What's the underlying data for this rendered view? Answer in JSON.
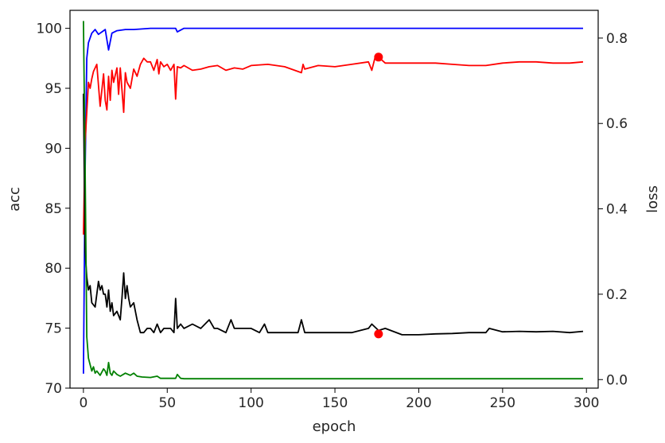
{
  "chart_data": {
    "type": "line",
    "title": "",
    "xlabel": "epoch",
    "ylabel_left": "acc",
    "ylabel_right": "loss",
    "xlim": [
      -8,
      307
    ],
    "ylim_left": [
      70,
      101.5
    ],
    "ylim_right": [
      -0.02,
      0.865
    ],
    "xticks": [
      0,
      50,
      100,
      150,
      200,
      250,
      300
    ],
    "yticks_left": [
      70,
      75,
      80,
      85,
      90,
      95,
      100
    ],
    "yticks_right": [
      0.0,
      0.2,
      0.4,
      0.6,
      0.8
    ],
    "grid": false,
    "legend": "none",
    "series": [
      {
        "axis": "left",
        "color": "#0000ff",
        "x": [
          0,
          1,
          2,
          3,
          5,
          7,
          9,
          11,
          13,
          15,
          17,
          20,
          25,
          30,
          40,
          55,
          56,
          60,
          70,
          100,
          150,
          200,
          250,
          298
        ],
        "values": [
          71.2,
          88.0,
          97.5,
          98.8,
          99.6,
          99.9,
          99.5,
          99.7,
          99.9,
          98.2,
          99.6,
          99.8,
          99.9,
          99.9,
          100.0,
          100.0,
          99.7,
          100.0,
          100.0,
          100.0,
          100.0,
          100.0,
          100.0,
          100.0
        ]
      },
      {
        "axis": "left",
        "color": "#ff0000",
        "x": [
          0,
          1,
          2,
          3,
          4,
          5,
          6,
          8,
          10,
          12,
          13,
          14,
          15,
          16,
          17,
          18,
          20,
          21,
          22,
          24,
          25,
          26,
          28,
          30,
          32,
          34,
          36,
          38,
          40,
          42,
          44,
          45,
          46,
          48,
          50,
          52,
          54,
          55,
          56,
          58,
          60,
          65,
          70,
          75,
          80,
          85,
          90,
          95,
          100,
          110,
          120,
          130,
          131,
          132,
          140,
          150,
          160,
          170,
          172,
          174,
          176,
          180,
          190,
          200,
          210,
          220,
          230,
          240,
          250,
          260,
          270,
          280,
          290,
          298
        ],
        "values": [
          82.8,
          90.5,
          93.0,
          95.5,
          95.0,
          95.8,
          96.4,
          97.0,
          93.5,
          96.2,
          94.0,
          93.2,
          96.0,
          94.0,
          96.5,
          95.5,
          96.7,
          94.5,
          96.7,
          93.0,
          96.3,
          95.5,
          95.0,
          96.6,
          96.0,
          97.0,
          97.5,
          97.2,
          97.2,
          96.5,
          97.4,
          96.2,
          97.2,
          96.8,
          97.0,
          96.5,
          97.0,
          94.1,
          96.8,
          96.7,
          96.9,
          96.5,
          96.6,
          96.8,
          96.9,
          96.5,
          96.7,
          96.6,
          96.9,
          97.0,
          96.8,
          96.3,
          97.0,
          96.6,
          96.9,
          96.8,
          97.0,
          97.2,
          96.5,
          97.6,
          97.6,
          97.1,
          97.1,
          97.1,
          97.1,
          97.0,
          96.9,
          96.9,
          97.1,
          97.2,
          97.2,
          97.1,
          97.1,
          97.2
        ]
      },
      {
        "axis": "right",
        "color": "#000000",
        "x": [
          0,
          1,
          2,
          3,
          4,
          5,
          7,
          9,
          10,
          11,
          12,
          13,
          14,
          15,
          16,
          17,
          18,
          20,
          22,
          23,
          24,
          25,
          26,
          27,
          28,
          30,
          32,
          34,
          36,
          38,
          40,
          42,
          44,
          46,
          48,
          50,
          52,
          54,
          55,
          56,
          58,
          60,
          65,
          70,
          75,
          78,
          80,
          85,
          88,
          90,
          100,
          105,
          108,
          110,
          120,
          128,
          130,
          132,
          140,
          150,
          160,
          170,
          172,
          176,
          180,
          190,
          200,
          210,
          220,
          230,
          240,
          242,
          250,
          260,
          270,
          280,
          290,
          298
        ],
        "values": [
          0.67,
          0.3,
          0.24,
          0.21,
          0.22,
          0.18,
          0.17,
          0.23,
          0.21,
          0.22,
          0.2,
          0.2,
          0.17,
          0.21,
          0.16,
          0.18,
          0.15,
          0.16,
          0.14,
          0.19,
          0.25,
          0.19,
          0.22,
          0.19,
          0.17,
          0.18,
          0.14,
          0.11,
          0.11,
          0.12,
          0.12,
          0.11,
          0.13,
          0.11,
          0.12,
          0.12,
          0.12,
          0.11,
          0.19,
          0.12,
          0.13,
          0.12,
          0.13,
          0.12,
          0.14,
          0.12,
          0.12,
          0.11,
          0.14,
          0.12,
          0.12,
          0.11,
          0.13,
          0.11,
          0.11,
          0.11,
          0.14,
          0.11,
          0.11,
          0.11,
          0.11,
          0.12,
          0.13,
          0.115,
          0.12,
          0.105,
          0.105,
          0.107,
          0.108,
          0.11,
          0.11,
          0.12,
          0.112,
          0.113,
          0.112,
          0.113,
          0.11,
          0.113
        ]
      },
      {
        "axis": "right",
        "color": "#008000",
        "x": [
          0,
          1,
          2,
          3,
          4,
          5,
          6,
          7,
          8,
          10,
          12,
          13,
          14,
          15,
          16,
          17,
          18,
          20,
          22,
          25,
          28,
          30,
          32,
          35,
          40,
          44,
          46,
          50,
          55,
          56,
          58,
          60,
          70,
          80,
          100,
          150,
          200,
          250,
          298
        ],
        "values": [
          0.84,
          0.5,
          0.1,
          0.05,
          0.035,
          0.02,
          0.03,
          0.015,
          0.02,
          0.01,
          0.025,
          0.02,
          0.01,
          0.04,
          0.015,
          0.01,
          0.02,
          0.012,
          0.008,
          0.015,
          0.01,
          0.015,
          0.008,
          0.006,
          0.005,
          0.008,
          0.003,
          0.003,
          0.003,
          0.012,
          0.003,
          0.002,
          0.002,
          0.002,
          0.002,
          0.002,
          0.002,
          0.002,
          0.002
        ]
      }
    ],
    "markers": [
      {
        "axis": "left",
        "color": "#ff0000",
        "x": 176,
        "y": 97.6
      },
      {
        "axis": "right",
        "color": "#ff0000",
        "x": 176,
        "y": 0.107
      }
    ]
  }
}
